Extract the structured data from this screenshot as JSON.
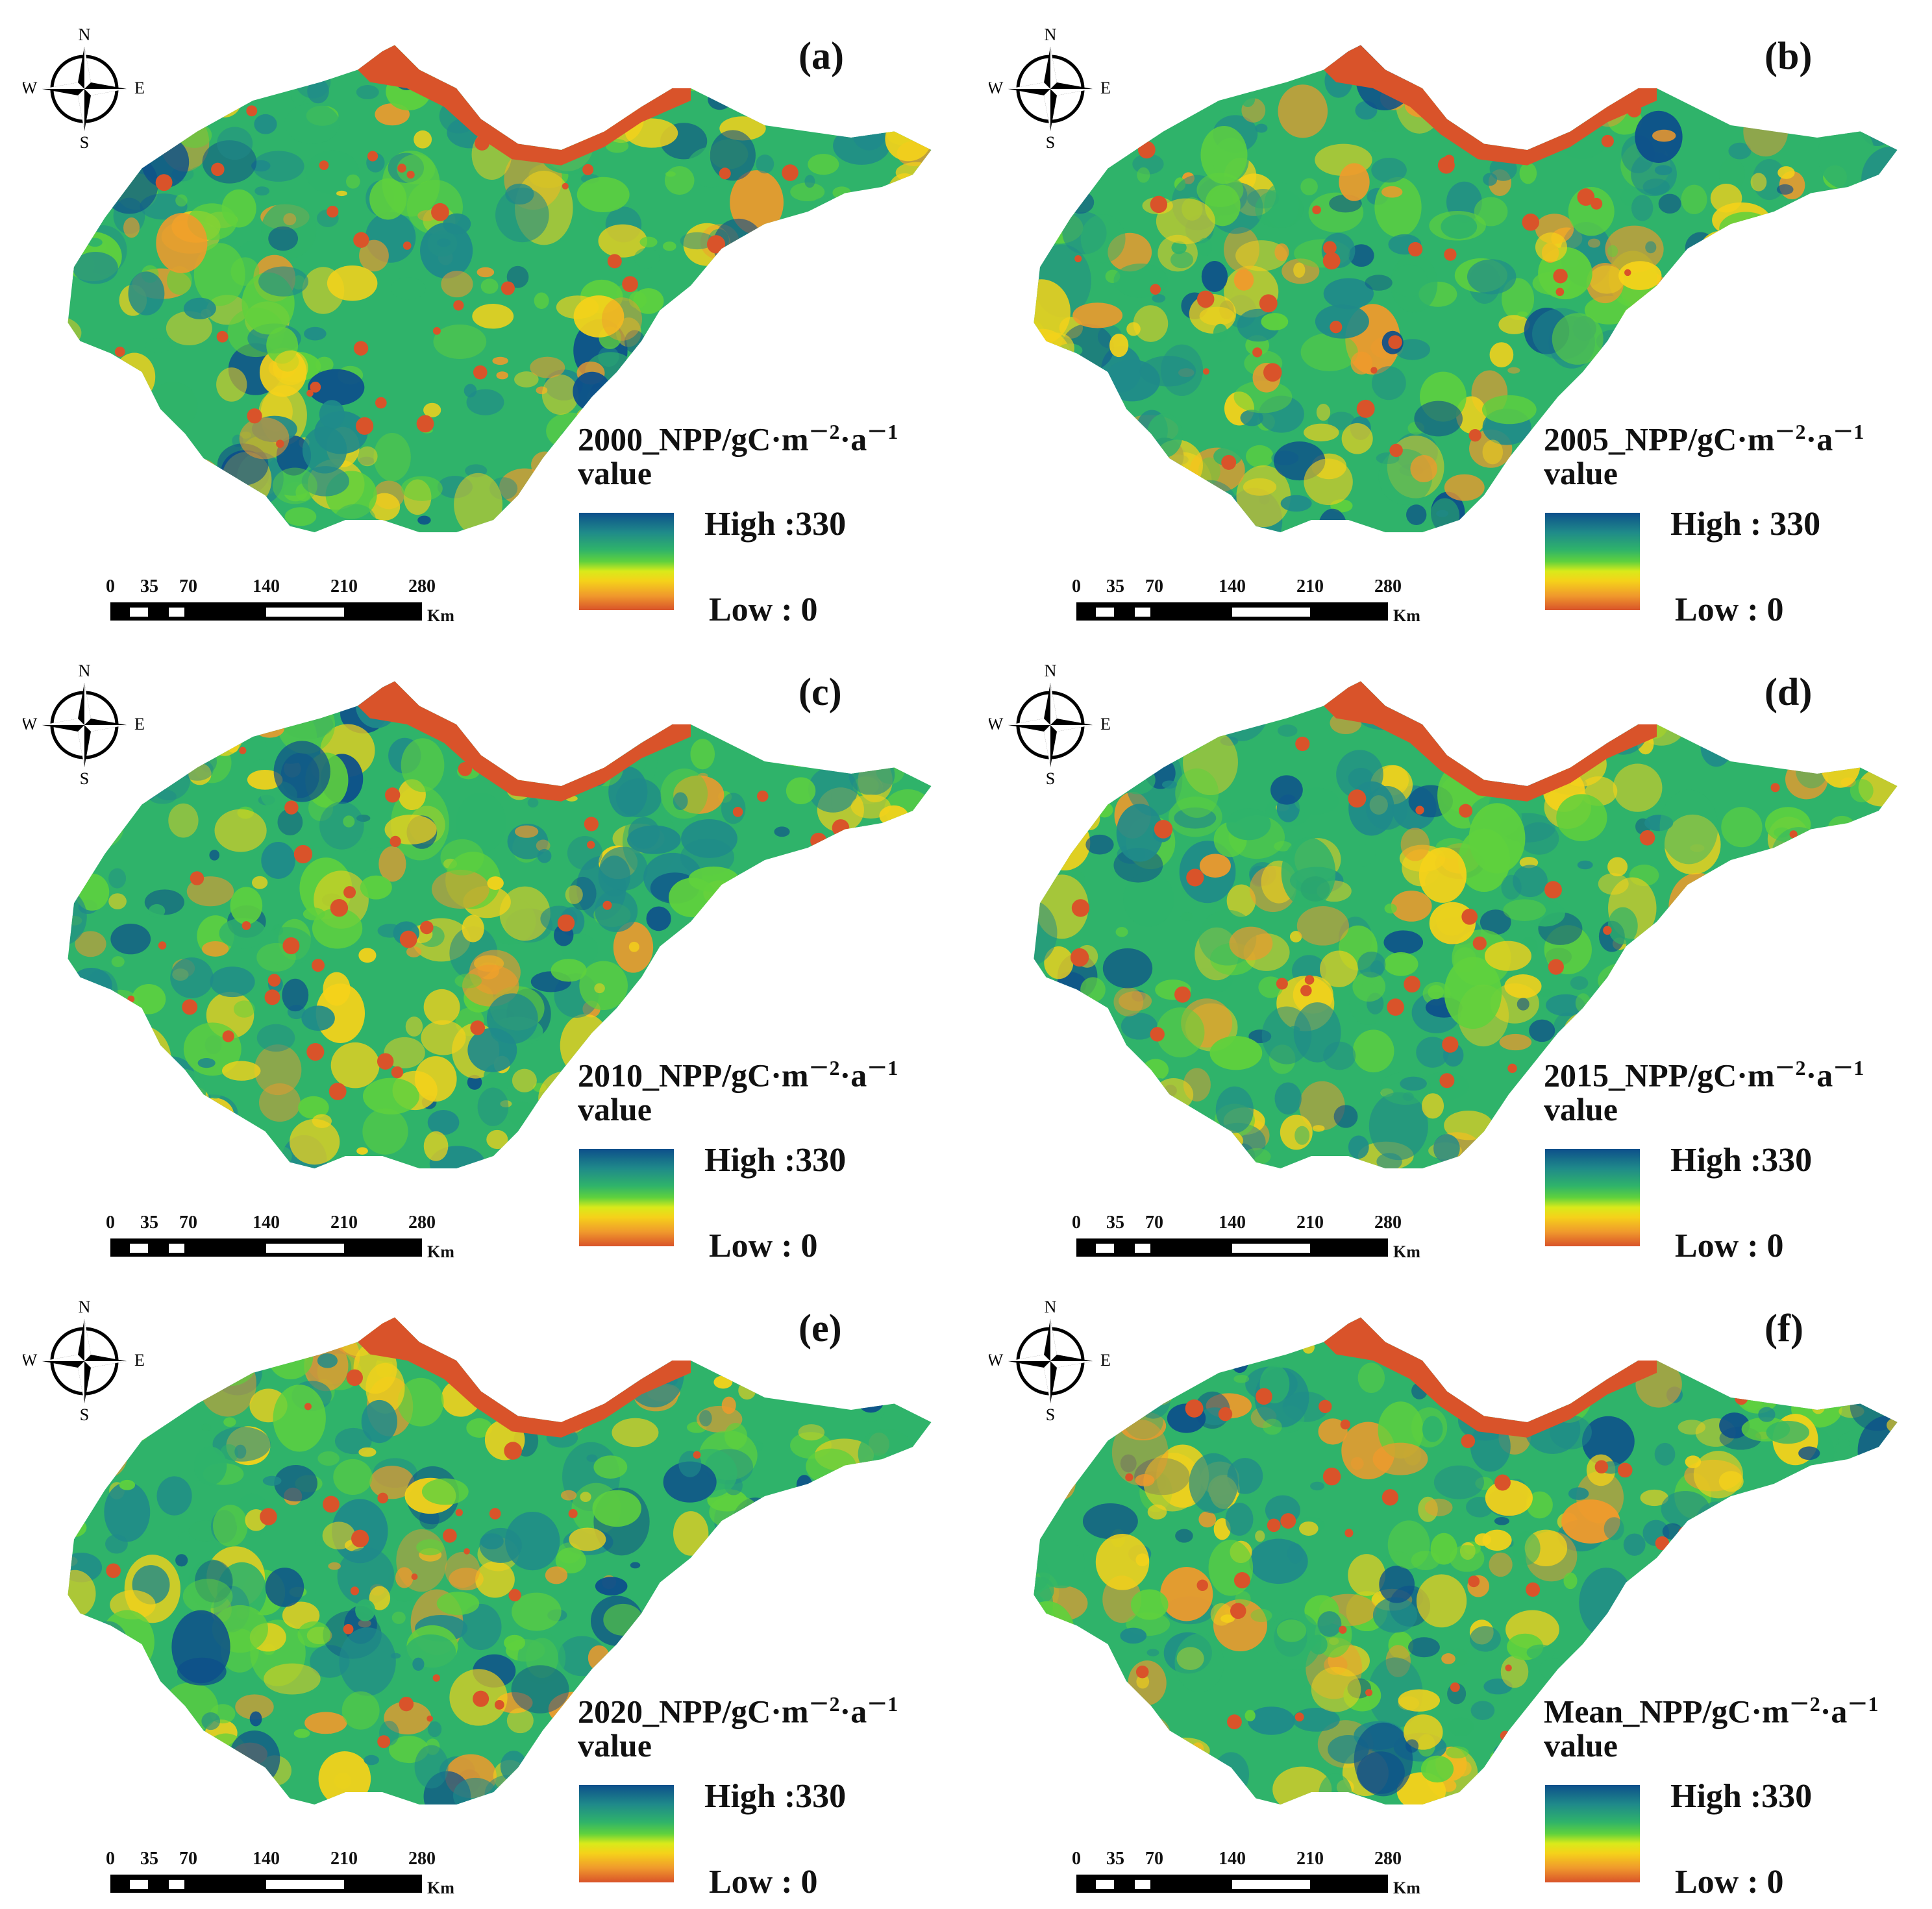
{
  "colors": {
    "high": "#0d4f8b",
    "green": "#2fb36a",
    "lime": "#5fd13d",
    "yellow": "#f5d21a",
    "orange": "#f09a2c",
    "low": "#d9532a"
  },
  "compass": {
    "n": "N",
    "s": "S",
    "e": "E",
    "w": "W"
  },
  "scale": {
    "ticks": [
      "0",
      "35",
      "70",
      "140",
      "210",
      "280"
    ],
    "unit": "Km"
  },
  "panels": [
    {
      "letter": "(a)",
      "title_prefix": "2000_NPP/gC·m",
      "exp1": "－2",
      "mid": "·a",
      "exp2": "－1",
      "sub": "value",
      "high": "High :330",
      "low": "Low : 0"
    },
    {
      "letter": "(b)",
      "title_prefix": "2005_NPP/gC·m",
      "exp1": "－2",
      "mid": "·a",
      "exp2": "－1",
      "sub": "value",
      "high": "High : 330",
      "low": "Low : 0"
    },
    {
      "letter": "(c)",
      "title_prefix": "2010_NPP/gC·m",
      "exp1": "－2",
      "mid": "·a",
      "exp2": "－1",
      "sub": "value",
      "high": "High :330",
      "low": "Low : 0"
    },
    {
      "letter": "(d)",
      "title_prefix": "2015_NPP/gC·m",
      "exp1": "－2",
      "mid": "·a",
      "exp2": "－1",
      "sub": "value",
      "high": "High :330",
      "low": "Low : 0"
    },
    {
      "letter": "(e)",
      "title_prefix": "2020_NPP/gC·m",
      "exp1": "－2",
      "mid": "·a",
      "exp2": "－1",
      "sub": "value",
      "high": "High :330",
      "low": "Low : 0"
    },
    {
      "letter": "(f)",
      "title_prefix": "Mean_NPP/gC·m",
      "exp1": "－2",
      "mid": "·a",
      "exp2": "－1",
      "sub": "value",
      "high": "High :330",
      "low": "Low : 0"
    }
  ]
}
